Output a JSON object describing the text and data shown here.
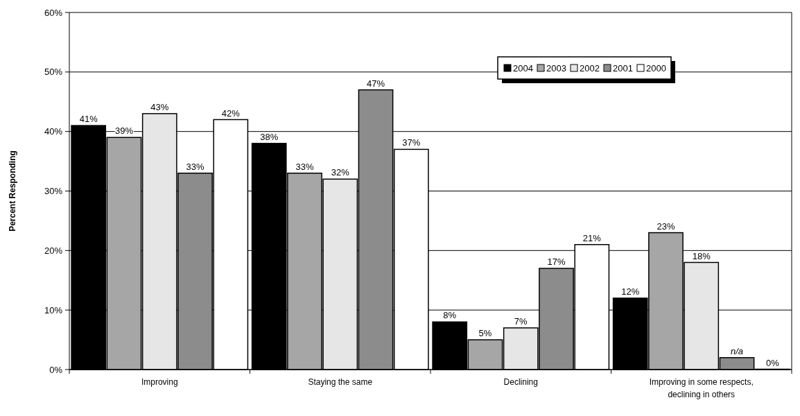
{
  "chart_data": {
    "type": "bar",
    "ylabel": "Percent Responding",
    "categories": [
      "Improving",
      "Staying the same",
      "Declining",
      "Improving in some respects, declining in others"
    ],
    "series": [
      {
        "name": "2004",
        "color": "#000000",
        "values": [
          41,
          38,
          8,
          12
        ],
        "value_labels": [
          "41%",
          "38%",
          "8%",
          "12%"
        ]
      },
      {
        "name": "2003",
        "color": "#a6a6a6",
        "values": [
          39,
          33,
          5,
          23
        ],
        "value_labels": [
          "39%",
          "33%",
          "5%",
          "23%"
        ]
      },
      {
        "name": "2002",
        "color": "#e6e6e6",
        "values": [
          43,
          32,
          7,
          18
        ],
        "value_labels": [
          "43%",
          "32%",
          "7%",
          "18%"
        ]
      },
      {
        "name": "2001",
        "color": "#8c8c8c",
        "values": [
          33,
          47,
          17,
          2
        ],
        "value_labels": [
          "33%",
          "47%",
          "17%",
          "n/a"
        ]
      },
      {
        "name": "2000",
        "color": "#ffffff",
        "values": [
          42,
          37,
          21,
          0
        ],
        "value_labels": [
          "42%",
          "37%",
          "21%",
          "0%"
        ]
      }
    ],
    "ylim": [
      0,
      60
    ],
    "yticks": [
      {
        "value": 0,
        "label": "0%"
      },
      {
        "value": 10,
        "label": "10%"
      },
      {
        "value": 20,
        "label": "20%"
      },
      {
        "value": 30,
        "label": "30%"
      },
      {
        "value": 40,
        "label": "40%"
      },
      {
        "value": 50,
        "label": "50%"
      },
      {
        "value": 60,
        "label": "60%"
      }
    ],
    "grid": "y",
    "legend": "top right"
  }
}
